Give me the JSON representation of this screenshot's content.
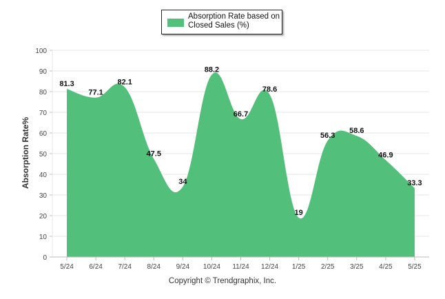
{
  "chart_data": {
    "type": "area",
    "categories": [
      "5/24",
      "6/24",
      "7/24",
      "8/24",
      "9/24",
      "10/24",
      "11/24",
      "12/24",
      "1/25",
      "2/25",
      "3/25",
      "4/25",
      "5/25"
    ],
    "series": [
      {
        "name": "Absorption Rate based on Closed Sales (%)",
        "values": [
          81.3,
          77.1,
          82.1,
          47.5,
          34,
          88.2,
          66.7,
          78.6,
          19,
          56.3,
          58.6,
          46.9,
          33.3
        ],
        "color": "#52bf7a"
      }
    ],
    "data_labels": [
      "81.3",
      "77.1",
      "82.1",
      "47.5",
      "34",
      "88.2",
      "66.7",
      "78.6",
      "19",
      "56.3",
      "58.6",
      "46.9",
      "33.3"
    ],
    "ylabel": "Absorption Rate%",
    "xlabel": "",
    "ylim": [
      0,
      100
    ],
    "yticks": [
      0,
      10,
      20,
      30,
      40,
      50,
      60,
      70,
      80,
      90,
      100
    ],
    "grid": true,
    "legend_position": "top-center"
  },
  "footer": {
    "copyright": "Copyright © Trendgraphix, Inc."
  }
}
